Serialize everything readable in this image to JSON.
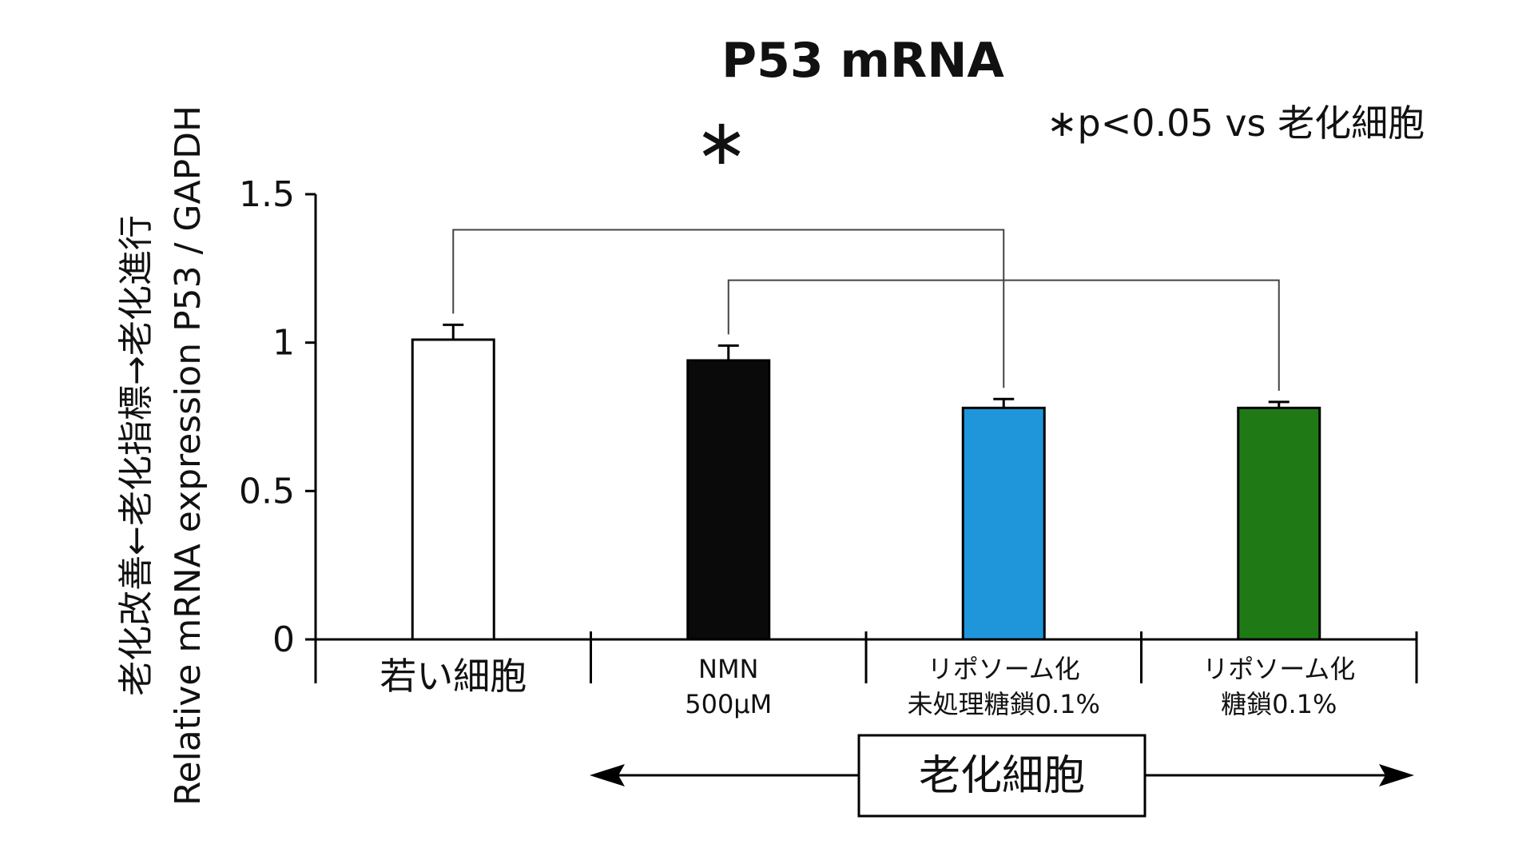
{
  "chart_data": {
    "type": "bar",
    "title": "P53 mRNA",
    "significance_note": "∗p<0.05 vs 老化細胞",
    "ylabel_line1": "老化改善←老化指標→老化進行",
    "ylabel_line2": "Relative mRNA expression P53 / GAPDH",
    "ylim": [
      0,
      1.5
    ],
    "yticks": [
      {
        "value": 0,
        "label": "0"
      },
      {
        "value": 0.5,
        "label": "0.5"
      },
      {
        "value": 1,
        "label": "1"
      },
      {
        "value": 1.5,
        "label": "1.5"
      }
    ],
    "categories": [
      {
        "lines": [
          "若い細胞"
        ],
        "value": 1.01,
        "error": 0.05,
        "color": "#ffffff"
      },
      {
        "lines": [
          "NMN",
          "500μM"
        ],
        "value": 0.94,
        "error": 0.05,
        "color": "#0a0a0a"
      },
      {
        "lines": [
          "リポソーム化",
          "未処理糖鎖0.1%"
        ],
        "value": 0.78,
        "error": 0.03,
        "color": "#1f96d9"
      },
      {
        "lines": [
          "リポソーム化",
          "糖鎖0.1%"
        ],
        "value": 0.78,
        "error": 0.02,
        "color": "#1f7a16"
      }
    ],
    "significance": [
      {
        "from": 0,
        "to": 2,
        "mark": "∗"
      },
      {
        "from": 1,
        "to": 3,
        "mark": ""
      }
    ],
    "group_label": "老化細胞",
    "grid": false,
    "legend": "none"
  }
}
